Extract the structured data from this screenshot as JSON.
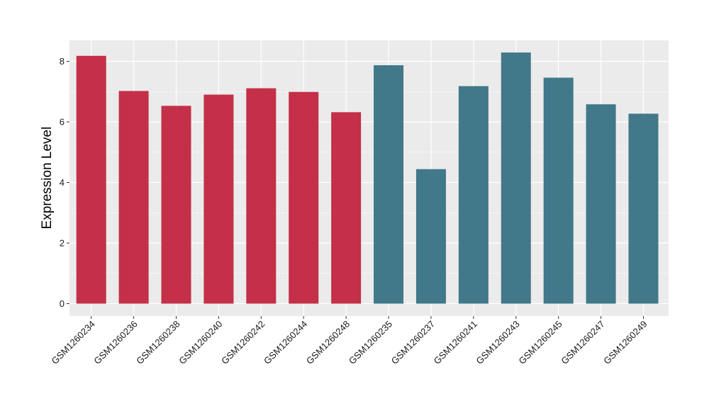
{
  "chart_data": {
    "type": "bar",
    "ylabel": "Expression Level",
    "xlabel": "",
    "ylim": [
      0,
      8.7
    ],
    "yticks": [
      0,
      2,
      4,
      6,
      8
    ],
    "grid": true,
    "legend": "none",
    "categories": [
      "GSM1260234",
      "GSM1260236",
      "GSM1260238",
      "GSM1260240",
      "GSM1260242",
      "GSM1260244",
      "GSM1260248",
      "GSM1260235",
      "GSM1260237",
      "GSM1260241",
      "GSM1260243",
      "GSM1260245",
      "GSM1260247",
      "GSM1260249"
    ],
    "values": [
      8.18,
      7.02,
      6.53,
      6.9,
      7.11,
      6.99,
      6.32,
      7.87,
      4.44,
      7.18,
      8.29,
      7.46,
      6.58,
      6.27
    ],
    "groups": [
      0,
      0,
      0,
      0,
      0,
      0,
      0,
      1,
      1,
      1,
      1,
      1,
      1,
      1
    ],
    "group_colors": [
      "#c33048",
      "#41788a"
    ],
    "panel_background": "#ebebeb",
    "gridline_color": "#ffffff"
  }
}
